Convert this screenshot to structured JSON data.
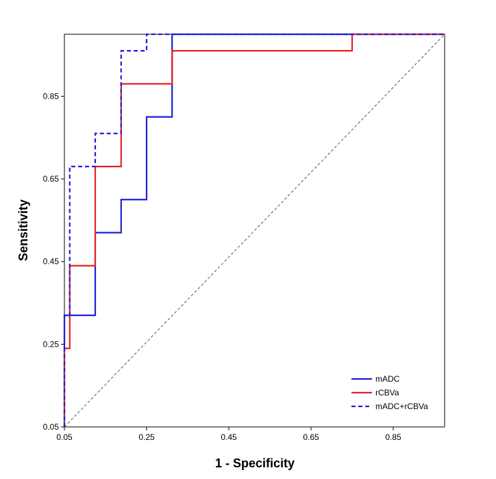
{
  "chart_data": {
    "type": "line",
    "title": "",
    "xlabel": "1 - Specificity",
    "ylabel": "Sensitivity",
    "xlim": [
      0.05,
      0.975
    ],
    "ylim": [
      0.05,
      1.0
    ],
    "xticks": [
      0.05,
      0.25,
      0.45,
      0.65,
      0.85
    ],
    "yticks": [
      0.05,
      0.25,
      0.45,
      0.65,
      0.85
    ],
    "xtick_labels": [
      "0.05",
      "0.25",
      "0.45",
      "0.65",
      "0.85"
    ],
    "ytick_labels": [
      "0.05",
      "0.25",
      "0.45",
      "0.65",
      "0.85"
    ],
    "grid": false,
    "legend_position": "bottom-right",
    "reference_line": {
      "style": "dashed",
      "color": "#555555",
      "from": [
        0.05,
        0.05
      ],
      "to": [
        0.975,
        1.0
      ]
    },
    "series": [
      {
        "name": "mADC",
        "color": "#1f1fd6",
        "style": "solid",
        "x": [
          0.05,
          0.05,
          0.125,
          0.125,
          0.188,
          0.188,
          0.25,
          0.25,
          0.312,
          0.312,
          0.975
        ],
        "y": [
          0.05,
          0.32,
          0.32,
          0.52,
          0.52,
          0.6,
          0.6,
          0.8,
          0.8,
          1.0,
          1.0
        ]
      },
      {
        "name": "rCBVa",
        "color": "#e82020",
        "style": "solid",
        "x": [
          0.05,
          0.05,
          0.063,
          0.063,
          0.125,
          0.125,
          0.188,
          0.188,
          0.312,
          0.312,
          0.75,
          0.75,
          0.975
        ],
        "y": [
          0.05,
          0.24,
          0.24,
          0.44,
          0.44,
          0.68,
          0.68,
          0.88,
          0.88,
          0.96,
          0.96,
          1.0,
          1.0
        ]
      },
      {
        "name": "mADC+rCBVa",
        "color": "#1f1fd6",
        "style": "dashed",
        "x": [
          0.05,
          0.05,
          0.063,
          0.063,
          0.125,
          0.125,
          0.188,
          0.188,
          0.25,
          0.25,
          0.312,
          0.975
        ],
        "y": [
          0.05,
          0.32,
          0.32,
          0.68,
          0.68,
          0.76,
          0.76,
          0.96,
          0.96,
          1.0,
          1.0,
          1.0
        ]
      }
    ]
  }
}
